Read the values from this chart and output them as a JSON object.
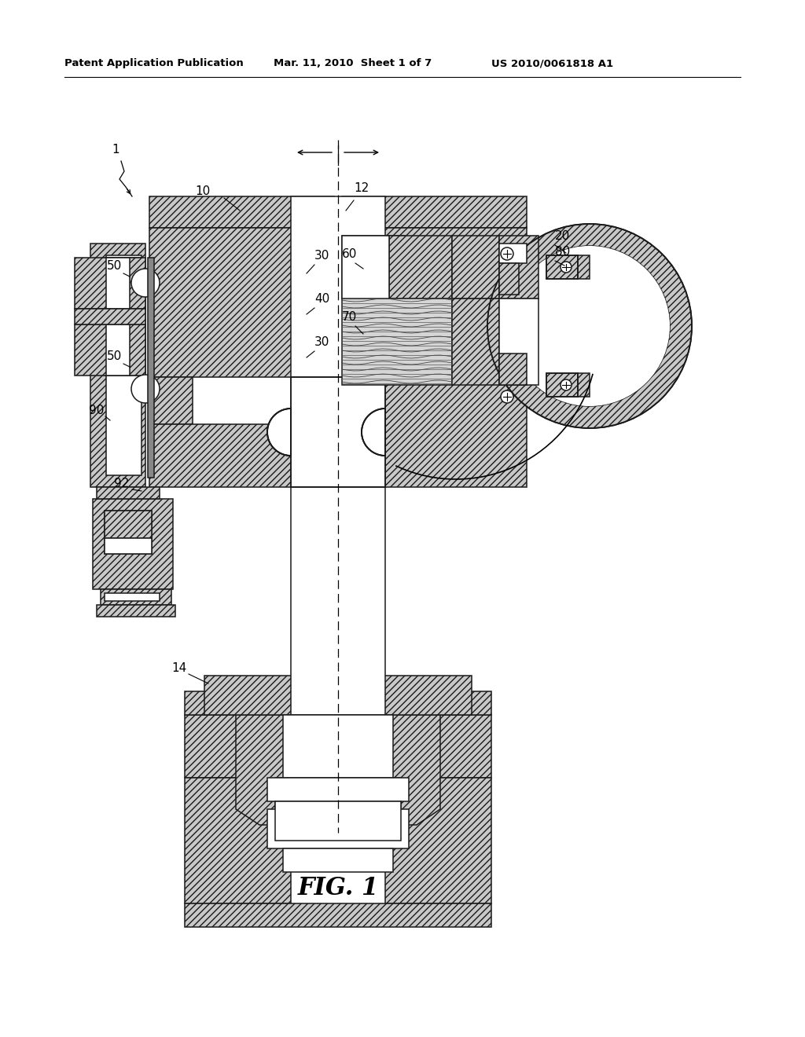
{
  "bg_color": "#ffffff",
  "hc": "#1a1a1a",
  "hfc": "#c8c8c8",
  "hfc2": "#b0b0b0",
  "lw": 1.1,
  "header_left": "Patent Application Publication",
  "header_mid": "Mar. 11, 2010  Sheet 1 of 7",
  "header_right": "US 2010/0061818 A1",
  "fig_label": "FIG. 1"
}
